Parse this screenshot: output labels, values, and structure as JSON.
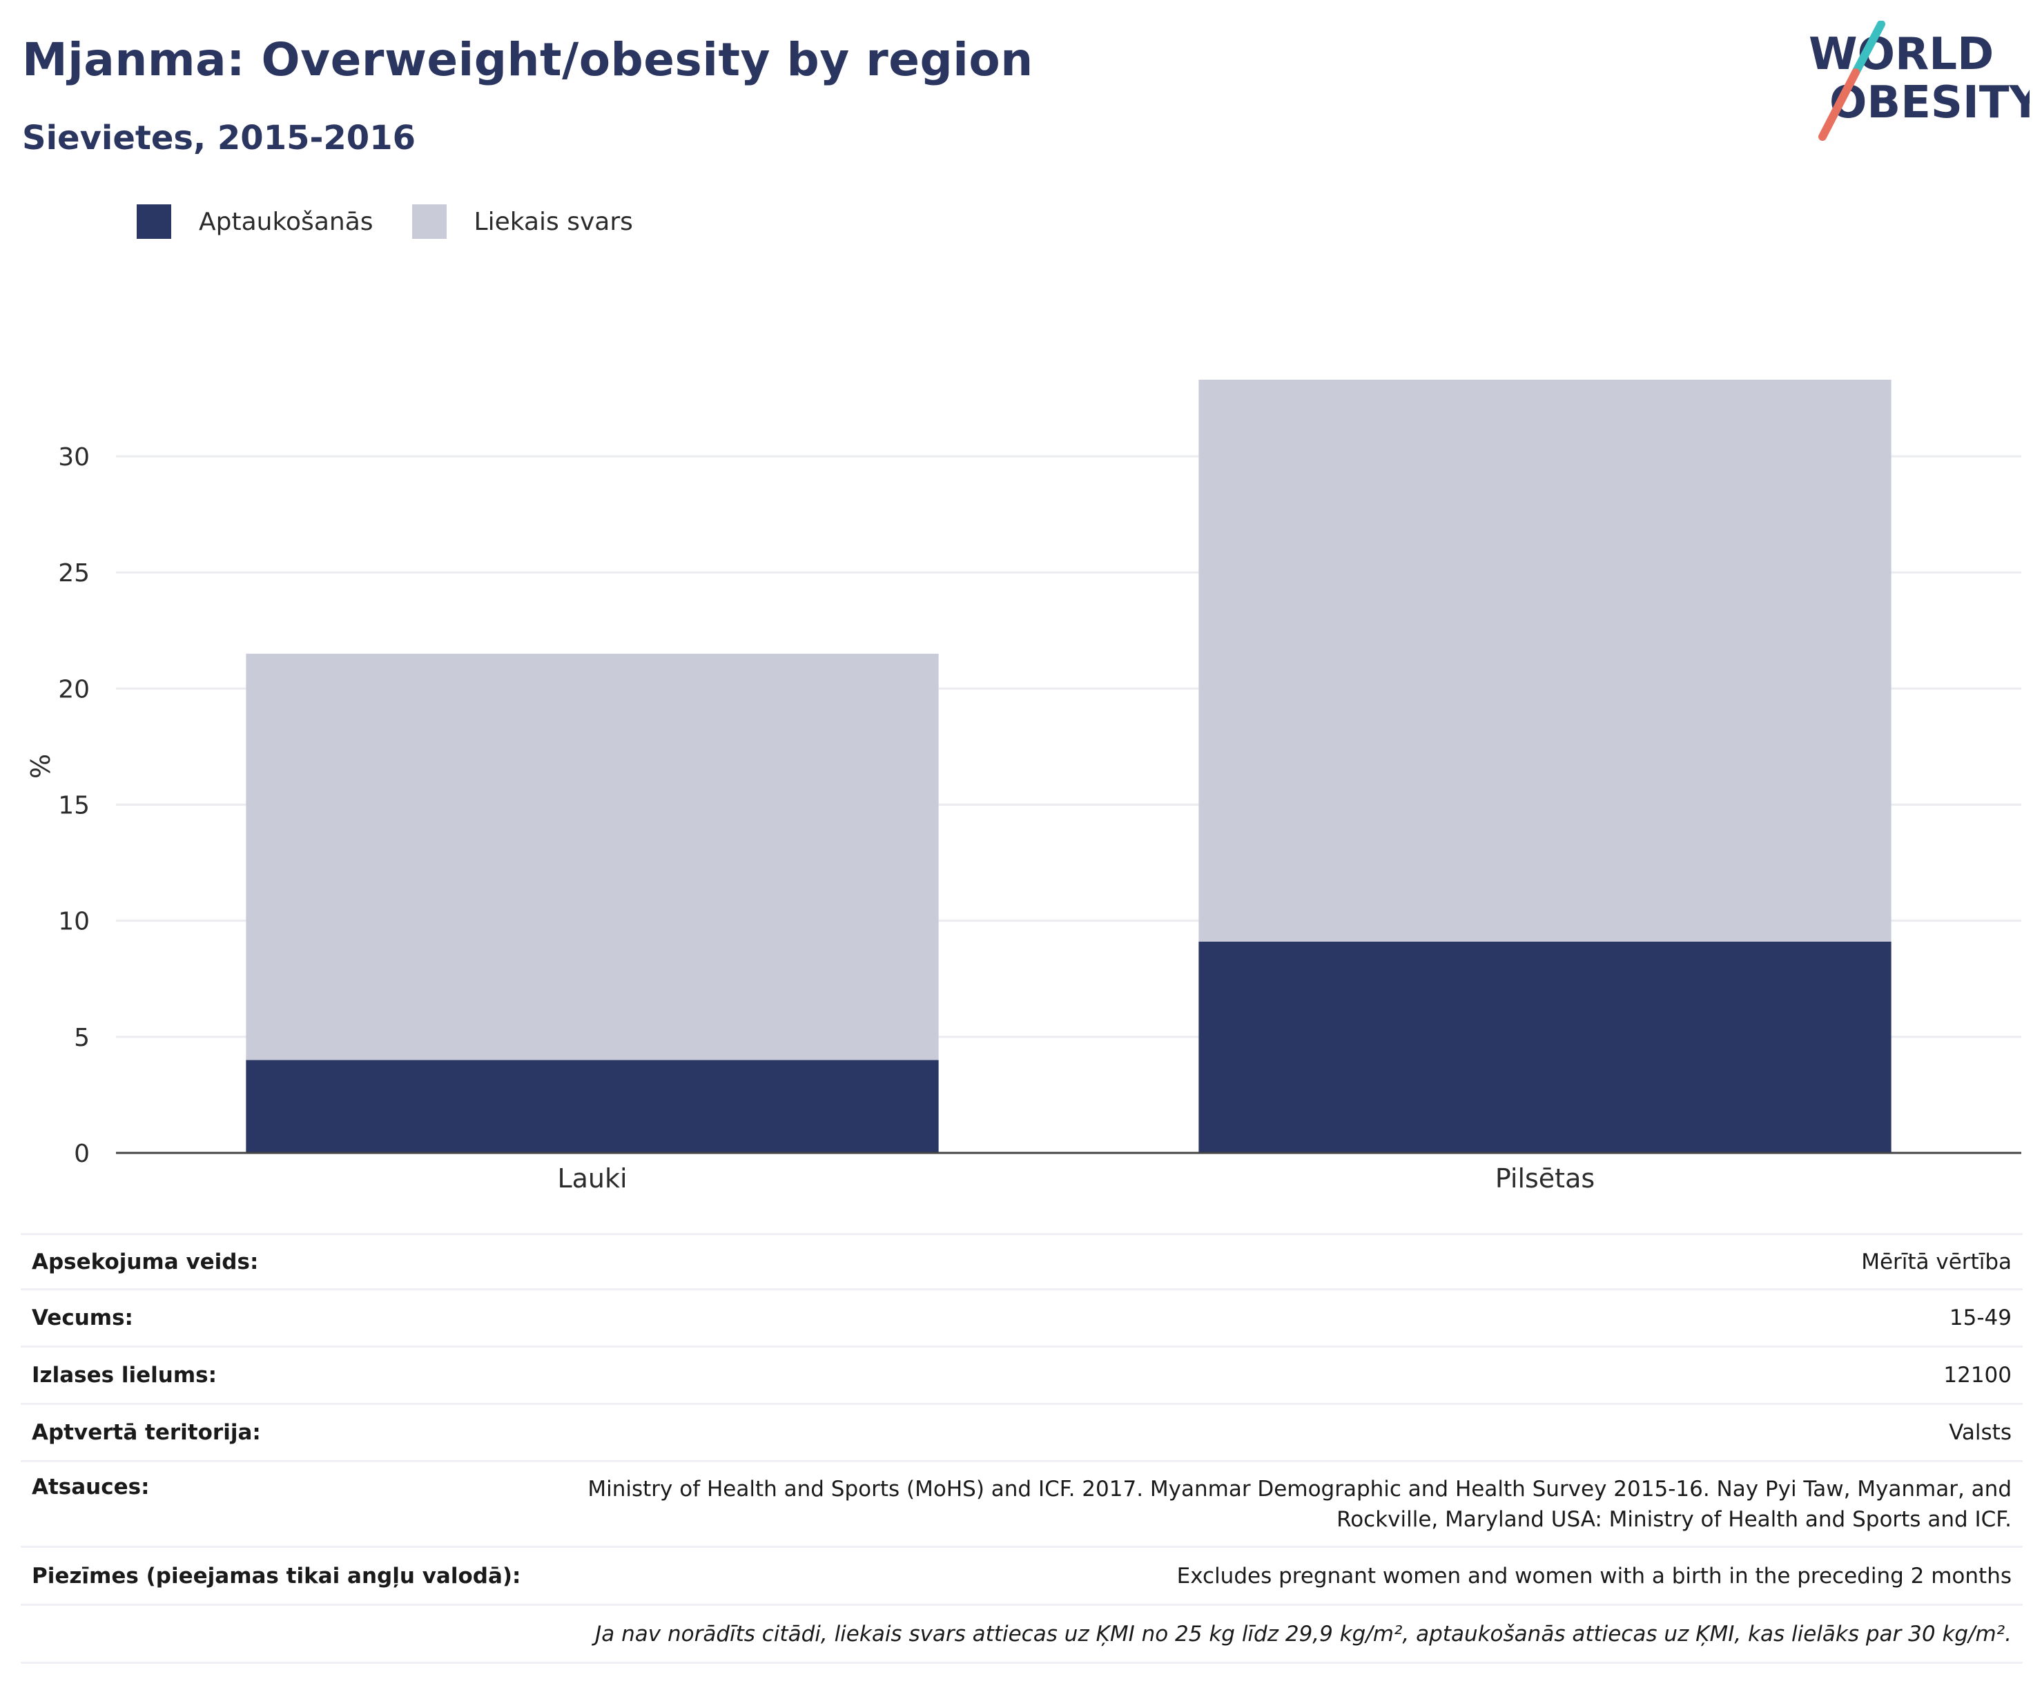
{
  "header": {
    "title": "Mjanma: Overweight/obesity by region",
    "subtitle": "Sievietes, 2015-2016"
  },
  "logo": {
    "line1": "WORLD",
    "line2": "OBESITY"
  },
  "colors": {
    "obesity": "#2a3663",
    "overweight": "#c9ccd8",
    "text_dark": "#2a3560",
    "logo_teal": "#3bbfc1",
    "logo_red": "#e8705f"
  },
  "chart_data": {
    "type": "bar",
    "stacked": true,
    "categories": [
      "Lauki",
      "Pilsētas"
    ],
    "series": [
      {
        "name": "Aptaukošanās",
        "values": [
          4.0,
          9.1
        ]
      },
      {
        "name": "Liekais svars",
        "values": [
          17.5,
          24.2
        ]
      }
    ],
    "ylabel": "%",
    "xlabel": "",
    "ylim": [
      0,
      33.3
    ],
    "yticks": [
      0,
      5,
      10,
      15,
      20,
      25,
      30
    ],
    "grid": true,
    "legend": "top-left"
  },
  "meta": {
    "rows": [
      {
        "key": "Apsekojuma veids:",
        "value": "Mērītā vērtība"
      },
      {
        "key": "Vecums:",
        "value": "15-49"
      },
      {
        "key": "Izlases lielums:",
        "value": "12100"
      },
      {
        "key": "Aptvertā teritorija:",
        "value": "Valsts"
      },
      {
        "key": "Atsauces:",
        "value_line1": "Ministry of Health and Sports (MoHS) and ICF. 2017. Myanmar Demographic and Health Survey 2015-16. Nay Pyi Taw, Myanmar, and",
        "value_line2": "Rockville, Maryland USA: Ministry of Health and Sports and ICF."
      },
      {
        "key": "Piezīmes (pieejamas tikai angļu valodā):",
        "value": "Excludes pregnant women and women with a birth in the preceding 2 months"
      }
    ],
    "footnote": "Ja nav norādīts citādi, liekais svars attiecas uz ĶMI no 25 kg līdz 29,9 kg/m², aptaukošanās attiecas uz ĶMI, kas lielāks par 30 kg/m²."
  }
}
